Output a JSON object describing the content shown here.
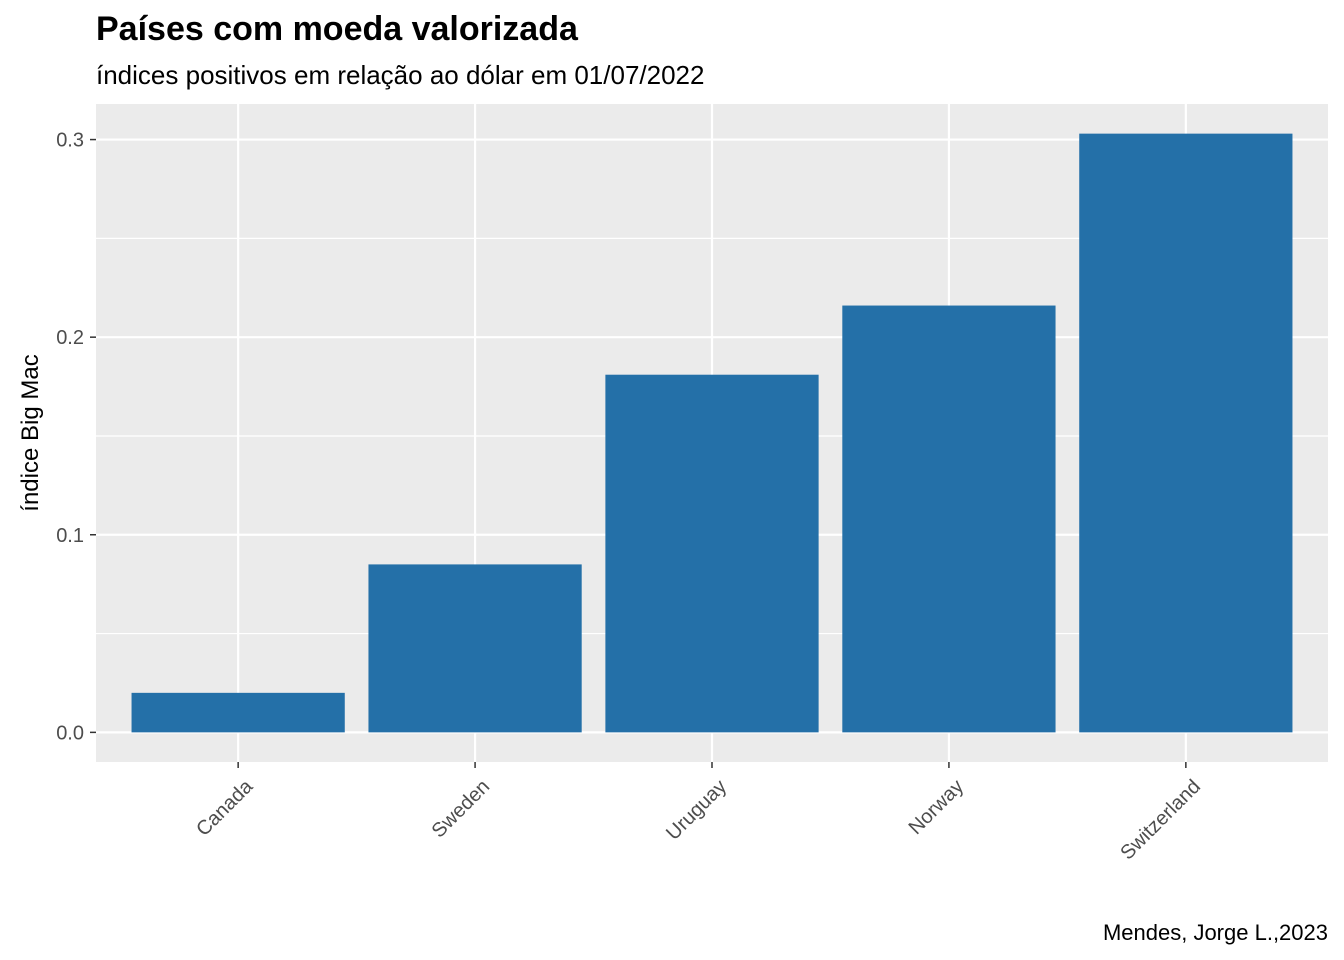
{
  "chart_data": {
    "type": "bar",
    "title": "Países com moeda valorizada",
    "subtitle": "índices positivos em relação ao dólar em 01/07/2022",
    "caption": "Mendes, Jorge L.,2023",
    "xlabel": "",
    "ylabel": "índice Big Mac",
    "categories": [
      "Canada",
      "Sweden",
      "Uruguay",
      "Norway",
      "Switzerland"
    ],
    "values": [
      0.02,
      0.085,
      0.181,
      0.216,
      0.303
    ],
    "ylim": [
      -0.015,
      0.318
    ],
    "yticks": [
      0.0,
      0.1,
      0.2,
      0.3
    ],
    "ytick_labels": [
      "0.0",
      "0.1",
      "0.2",
      "0.3"
    ],
    "bar_color": "#2470A8",
    "panel_background": "#EBEBEB",
    "grid": true
  }
}
